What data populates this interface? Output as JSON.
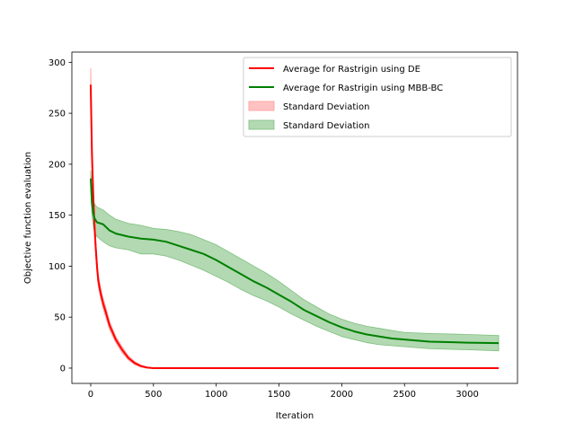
{
  "chart_data": {
    "type": "line",
    "title": "",
    "xlabel": "Iteration",
    "ylabel": "Objective function evaluation",
    "xlim": [
      -150,
      3400
    ],
    "ylim": [
      -15,
      310
    ],
    "xticks": [
      0,
      500,
      1000,
      1500,
      2000,
      2500,
      3000
    ],
    "yticks": [
      0,
      50,
      100,
      150,
      200,
      250,
      300
    ],
    "grid": false,
    "legend_position": "upper right",
    "series": [
      {
        "name": "Average for Rastrigin using DE",
        "color": "#ff0000",
        "points": [
          [
            0,
            278
          ],
          [
            10,
            210
          ],
          [
            20,
            170
          ],
          [
            30,
            140
          ],
          [
            40,
            118
          ],
          [
            50,
            100
          ],
          [
            60,
            86
          ],
          [
            80,
            73
          ],
          [
            100,
            63
          ],
          [
            120,
            55
          ],
          [
            150,
            42
          ],
          [
            200,
            28
          ],
          [
            250,
            18
          ],
          [
            300,
            10
          ],
          [
            350,
            5
          ],
          [
            400,
            2
          ],
          [
            450,
            0.5
          ],
          [
            500,
            0
          ],
          [
            1000,
            0
          ],
          [
            2000,
            0
          ],
          [
            3250,
            0
          ]
        ],
        "band": {
          "name": "Standard Deviation",
          "color": "#ff9999",
          "lower": [
            [
              0,
              265
            ],
            [
              10,
              195
            ],
            [
              20,
              158
            ],
            [
              30,
              130
            ],
            [
              40,
              110
            ],
            [
              50,
              93
            ],
            [
              60,
              80
            ],
            [
              80,
              68
            ],
            [
              100,
              58
            ],
            [
              120,
              50
            ],
            [
              150,
              38
            ],
            [
              200,
              25
            ],
            [
              250,
              15
            ],
            [
              300,
              8
            ],
            [
              350,
              3.5
            ],
            [
              400,
              1
            ],
            [
              450,
              0
            ],
            [
              500,
              0
            ],
            [
              3250,
              0
            ]
          ],
          "upper": [
            [
              0,
              294
            ],
            [
              10,
              225
            ],
            [
              20,
              182
            ],
            [
              30,
              150
            ],
            [
              40,
              126
            ],
            [
              50,
              107
            ],
            [
              60,
              92
            ],
            [
              80,
              78
            ],
            [
              100,
              68
            ],
            [
              120,
              60
            ],
            [
              150,
              46
            ],
            [
              200,
              31
            ],
            [
              250,
              21
            ],
            [
              300,
              12
            ],
            [
              350,
              6.5
            ],
            [
              400,
              3
            ],
            [
              450,
              1
            ],
            [
              500,
              0.3
            ],
            [
              3250,
              0.3
            ]
          ]
        }
      },
      {
        "name": "Average for Rastrigin using MBB-BC",
        "color": "#008000",
        "points": [
          [
            0,
            186
          ],
          [
            10,
            162
          ],
          [
            20,
            152
          ],
          [
            30,
            147
          ],
          [
            50,
            143
          ],
          [
            100,
            141
          ],
          [
            150,
            135
          ],
          [
            200,
            132
          ],
          [
            300,
            129
          ],
          [
            400,
            127
          ],
          [
            500,
            126
          ],
          [
            600,
            124
          ],
          [
            700,
            120
          ],
          [
            800,
            116
          ],
          [
            900,
            112
          ],
          [
            1000,
            106
          ],
          [
            1100,
            99
          ],
          [
            1200,
            92
          ],
          [
            1300,
            85
          ],
          [
            1400,
            79
          ],
          [
            1500,
            72
          ],
          [
            1600,
            65
          ],
          [
            1700,
            57
          ],
          [
            1800,
            51
          ],
          [
            1900,
            45
          ],
          [
            2000,
            40
          ],
          [
            2100,
            36
          ],
          [
            2200,
            33
          ],
          [
            2300,
            31
          ],
          [
            2400,
            29
          ],
          [
            2500,
            28
          ],
          [
            2700,
            26
          ],
          [
            3000,
            25
          ],
          [
            3250,
            24.5
          ]
        ],
        "band": {
          "name": "Standard Deviation",
          "color": "#7fbf7f",
          "lower": [
            [
              0,
              178
            ],
            [
              10,
              150
            ],
            [
              20,
              140
            ],
            [
              30,
              133
            ],
            [
              50,
              129
            ],
            [
              100,
              124
            ],
            [
              150,
              120
            ],
            [
              200,
              118
            ],
            [
              300,
              116
            ],
            [
              400,
              112
            ],
            [
              500,
              112
            ],
            [
              600,
              110
            ],
            [
              700,
              106
            ],
            [
              800,
              101
            ],
            [
              900,
              96
            ],
            [
              1000,
              90
            ],
            [
              1100,
              84
            ],
            [
              1200,
              77
            ],
            [
              1300,
              71
            ],
            [
              1400,
              66
            ],
            [
              1500,
              60
            ],
            [
              1600,
              53
            ],
            [
              1700,
              47
            ],
            [
              1800,
              41
            ],
            [
              1900,
              36
            ],
            [
              2000,
              31
            ],
            [
              2100,
              28
            ],
            [
              2200,
              25
            ],
            [
              2300,
              23
            ],
            [
              2400,
              22
            ],
            [
              2500,
              21
            ],
            [
              2700,
              19
            ],
            [
              3000,
              18
            ],
            [
              3250,
              17
            ]
          ],
          "upper": [
            [
              0,
              194
            ],
            [
              10,
              172
            ],
            [
              20,
              165
            ],
            [
              30,
              161
            ],
            [
              50,
              158
            ],
            [
              100,
              155
            ],
            [
              150,
              150
            ],
            [
              200,
              146
            ],
            [
              300,
              142
            ],
            [
              400,
              140
            ],
            [
              500,
              137
            ],
            [
              600,
              136
            ],
            [
              700,
              134
            ],
            [
              800,
              131
            ],
            [
              900,
              126
            ],
            [
              1000,
              121
            ],
            [
              1100,
              114
            ],
            [
              1200,
              107
            ],
            [
              1300,
              100
            ],
            [
              1400,
              93
            ],
            [
              1500,
              85
            ],
            [
              1600,
              76
            ],
            [
              1700,
              67
            ],
            [
              1800,
              60
            ],
            [
              1900,
              53
            ],
            [
              2000,
              48
            ],
            [
              2100,
              44
            ],
            [
              2200,
              41
            ],
            [
              2300,
              39
            ],
            [
              2400,
              37
            ],
            [
              2500,
              35
            ],
            [
              2700,
              34
            ],
            [
              3000,
              33
            ],
            [
              3250,
              32
            ]
          ]
        }
      }
    ],
    "legend": [
      {
        "label": "Average for Rastrigin using DE",
        "kind": "line",
        "color": "#ff0000"
      },
      {
        "label": "Average for Rastrigin using MBB-BC",
        "kind": "line",
        "color": "#008000"
      },
      {
        "label": "Standard Deviation",
        "kind": "patch",
        "color": "#ff9999"
      },
      {
        "label": "Standard Deviation",
        "kind": "patch",
        "color": "#7fbf7f"
      }
    ]
  }
}
